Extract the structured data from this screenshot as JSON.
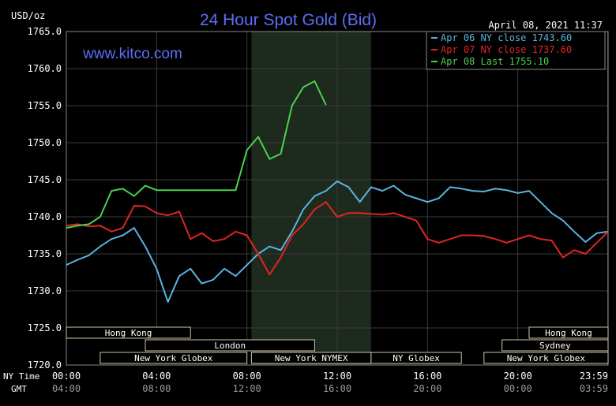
{
  "chart_data": {
    "type": "line",
    "title": "24 Hour Spot Gold (Bid)",
    "watermark": "www.kitco.com",
    "ylabel": "USD/oz",
    "timestamp": "April 08, 2021 11:37",
    "ylim": [
      1720,
      1765
    ],
    "yticks": [
      "1765.0",
      "1760.0",
      "1755.0",
      "1750.0",
      "1745.0",
      "1740.0",
      "1735.0",
      "1730.0",
      "1725.0",
      "1720.0"
    ],
    "ytick_values": [
      1765,
      1760,
      1755,
      1750,
      1745,
      1740,
      1735,
      1730,
      1725,
      1720
    ],
    "xlim": [
      0,
      24
    ],
    "x_row_labels": [
      "NY Time",
      "GMT"
    ],
    "xticks_ny": [
      "00:00",
      "04:00",
      "08:00",
      "12:00",
      "16:00",
      "20:00",
      "23:59"
    ],
    "xticks_gmt": [
      "04:00",
      "08:00",
      "12:00",
      "16:00",
      "20:00",
      "00:00",
      "03:59"
    ],
    "xtick_hours": [
      0,
      4,
      8,
      12,
      16,
      20,
      23.98
    ],
    "shaded_region_hours": [
      8.2,
      13.5
    ],
    "sessions": [
      {
        "name": "Hong Kong",
        "start": 0.0,
        "end": 5.5,
        "row": 0
      },
      {
        "name": "Hong Kong",
        "start": 20.5,
        "end": 24.0,
        "row": 0
      },
      {
        "name": "London",
        "start": 3.5,
        "end": 11.0,
        "row": 1
      },
      {
        "name": "Sydney",
        "start": 19.3,
        "end": 24.0,
        "row": 1
      },
      {
        "name": "New York Globex",
        "start": 1.5,
        "end": 8.0,
        "row": 2
      },
      {
        "name": "New York NYMEX",
        "start": 8.2,
        "end": 13.5,
        "row": 2
      },
      {
        "name": "NY Globex",
        "start": 13.5,
        "end": 17.5,
        "row": 2
      },
      {
        "name": "New York Globex",
        "start": 18.5,
        "end": 24.0,
        "row": 2
      }
    ],
    "grid": true,
    "legend_position": "top-right",
    "series": [
      {
        "name": "Apr 06 NY close 1743.60",
        "color": "#5ab4e0",
        "x": [
          0,
          0.5,
          1,
          1.5,
          2,
          2.5,
          3,
          3.5,
          4,
          4.5,
          5,
          5.5,
          6,
          6.5,
          7,
          7.5,
          8,
          8.5,
          9,
          9.5,
          10,
          10.5,
          11,
          11.5,
          12,
          12.5,
          13,
          13.5,
          14,
          14.5,
          15,
          15.5,
          16,
          16.5,
          17,
          17.5,
          18,
          18.5,
          19,
          19.5,
          20,
          20.5,
          21,
          21.5,
          22,
          22.5,
          23,
          23.5,
          24
        ],
        "y": [
          1733.5,
          1734.2,
          1734.8,
          1736,
          1737,
          1737.5,
          1738.5,
          1736,
          1733,
          1728.5,
          1732,
          1733,
          1731,
          1731.5,
          1733,
          1732,
          1733.5,
          1735,
          1736,
          1735.5,
          1738,
          1741,
          1742.8,
          1743.5,
          1744.8,
          1744,
          1742,
          1744,
          1743.5,
          1744.2,
          1743,
          1742.5,
          1742,
          1742.5,
          1744,
          1743.8,
          1743.5,
          1743.4,
          1743.8,
          1743.6,
          1743.2,
          1743.5,
          1742,
          1740.5,
          1739.5,
          1738,
          1736.6,
          1737.8,
          1738
        ]
      },
      {
        "name": "Apr 07 NY close 1737.60",
        "color": "#e02424",
        "x": [
          0,
          0.5,
          1,
          1.5,
          2,
          2.5,
          3,
          3.5,
          4,
          4.5,
          5,
          5.5,
          6,
          6.5,
          7,
          7.5,
          8,
          8.5,
          9,
          9.5,
          10,
          10.5,
          11,
          11.5,
          12,
          12.5,
          13,
          13.5,
          14,
          14.5,
          15,
          15.5,
          16,
          16.5,
          17,
          17.5,
          18,
          18.5,
          19,
          19.5,
          20,
          20.5,
          21,
          21.5,
          22,
          22.5,
          23,
          23.5,
          24
        ],
        "y": [
          1738.8,
          1739,
          1738.7,
          1738.8,
          1738,
          1738.5,
          1741.5,
          1741.4,
          1740.5,
          1740.2,
          1740.7,
          1737,
          1737.8,
          1736.7,
          1737,
          1738,
          1737.5,
          1735,
          1732.2,
          1734.5,
          1737.5,
          1739,
          1741,
          1742,
          1740,
          1740.5,
          1740.5,
          1740.4,
          1740.3,
          1740.5,
          1740,
          1739.5,
          1737,
          1736.5,
          1737,
          1737.5,
          1737.5,
          1737.4,
          1737,
          1736.5,
          1737,
          1737.5,
          1737,
          1736.8,
          1734.5,
          1735.5,
          1735,
          1736.5,
          1738
        ]
      },
      {
        "name": "Apr 08 Last 1755.10",
        "color": "#49d24d",
        "x": [
          0,
          0.5,
          1,
          1.5,
          2,
          2.5,
          3,
          3.5,
          4,
          4.5,
          5,
          5.5,
          6,
          6.5,
          7,
          7.5,
          8,
          8.5,
          9,
          9.5,
          10,
          10.5,
          11,
          11.5
        ],
        "y": [
          1738.5,
          1738.8,
          1739,
          1740,
          1743.5,
          1743.8,
          1742.8,
          1744.2,
          1743.6,
          1743.6,
          1743.6,
          1743.6,
          1743.6,
          1743.6,
          1743.6,
          1743.6,
          1749,
          1750.8,
          1747.8,
          1748.5,
          1755,
          1757.5,
          1758.3,
          1755.1
        ]
      }
    ]
  }
}
